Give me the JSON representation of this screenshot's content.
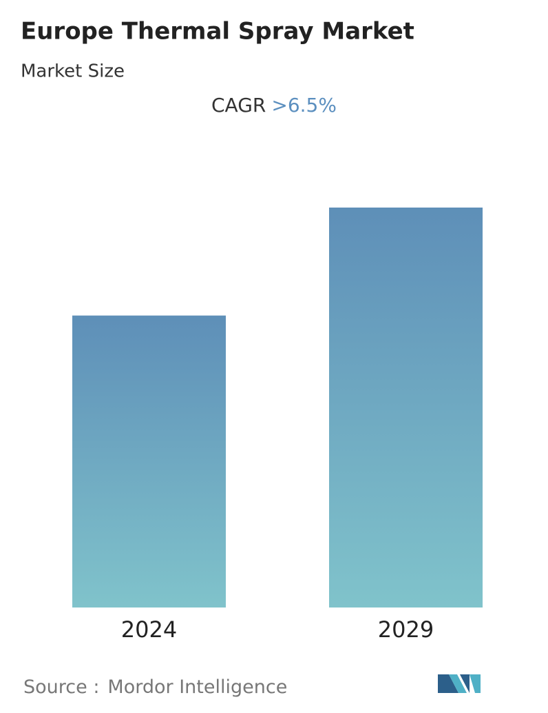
{
  "chart_data": {
    "type": "bar",
    "title": "Europe Thermal Spray Market",
    "subtitle": "Market Size",
    "cagr_label": "CAGR",
    "cagr_value": ">6.5%",
    "categories": [
      "2024",
      "2029"
    ],
    "values": [
      73,
      100
    ],
    "gradient": {
      "top": "#5e8fb8",
      "bottom": "#80c3cb"
    },
    "source_label": "Source :",
    "source": "Mordor Intelligence"
  }
}
